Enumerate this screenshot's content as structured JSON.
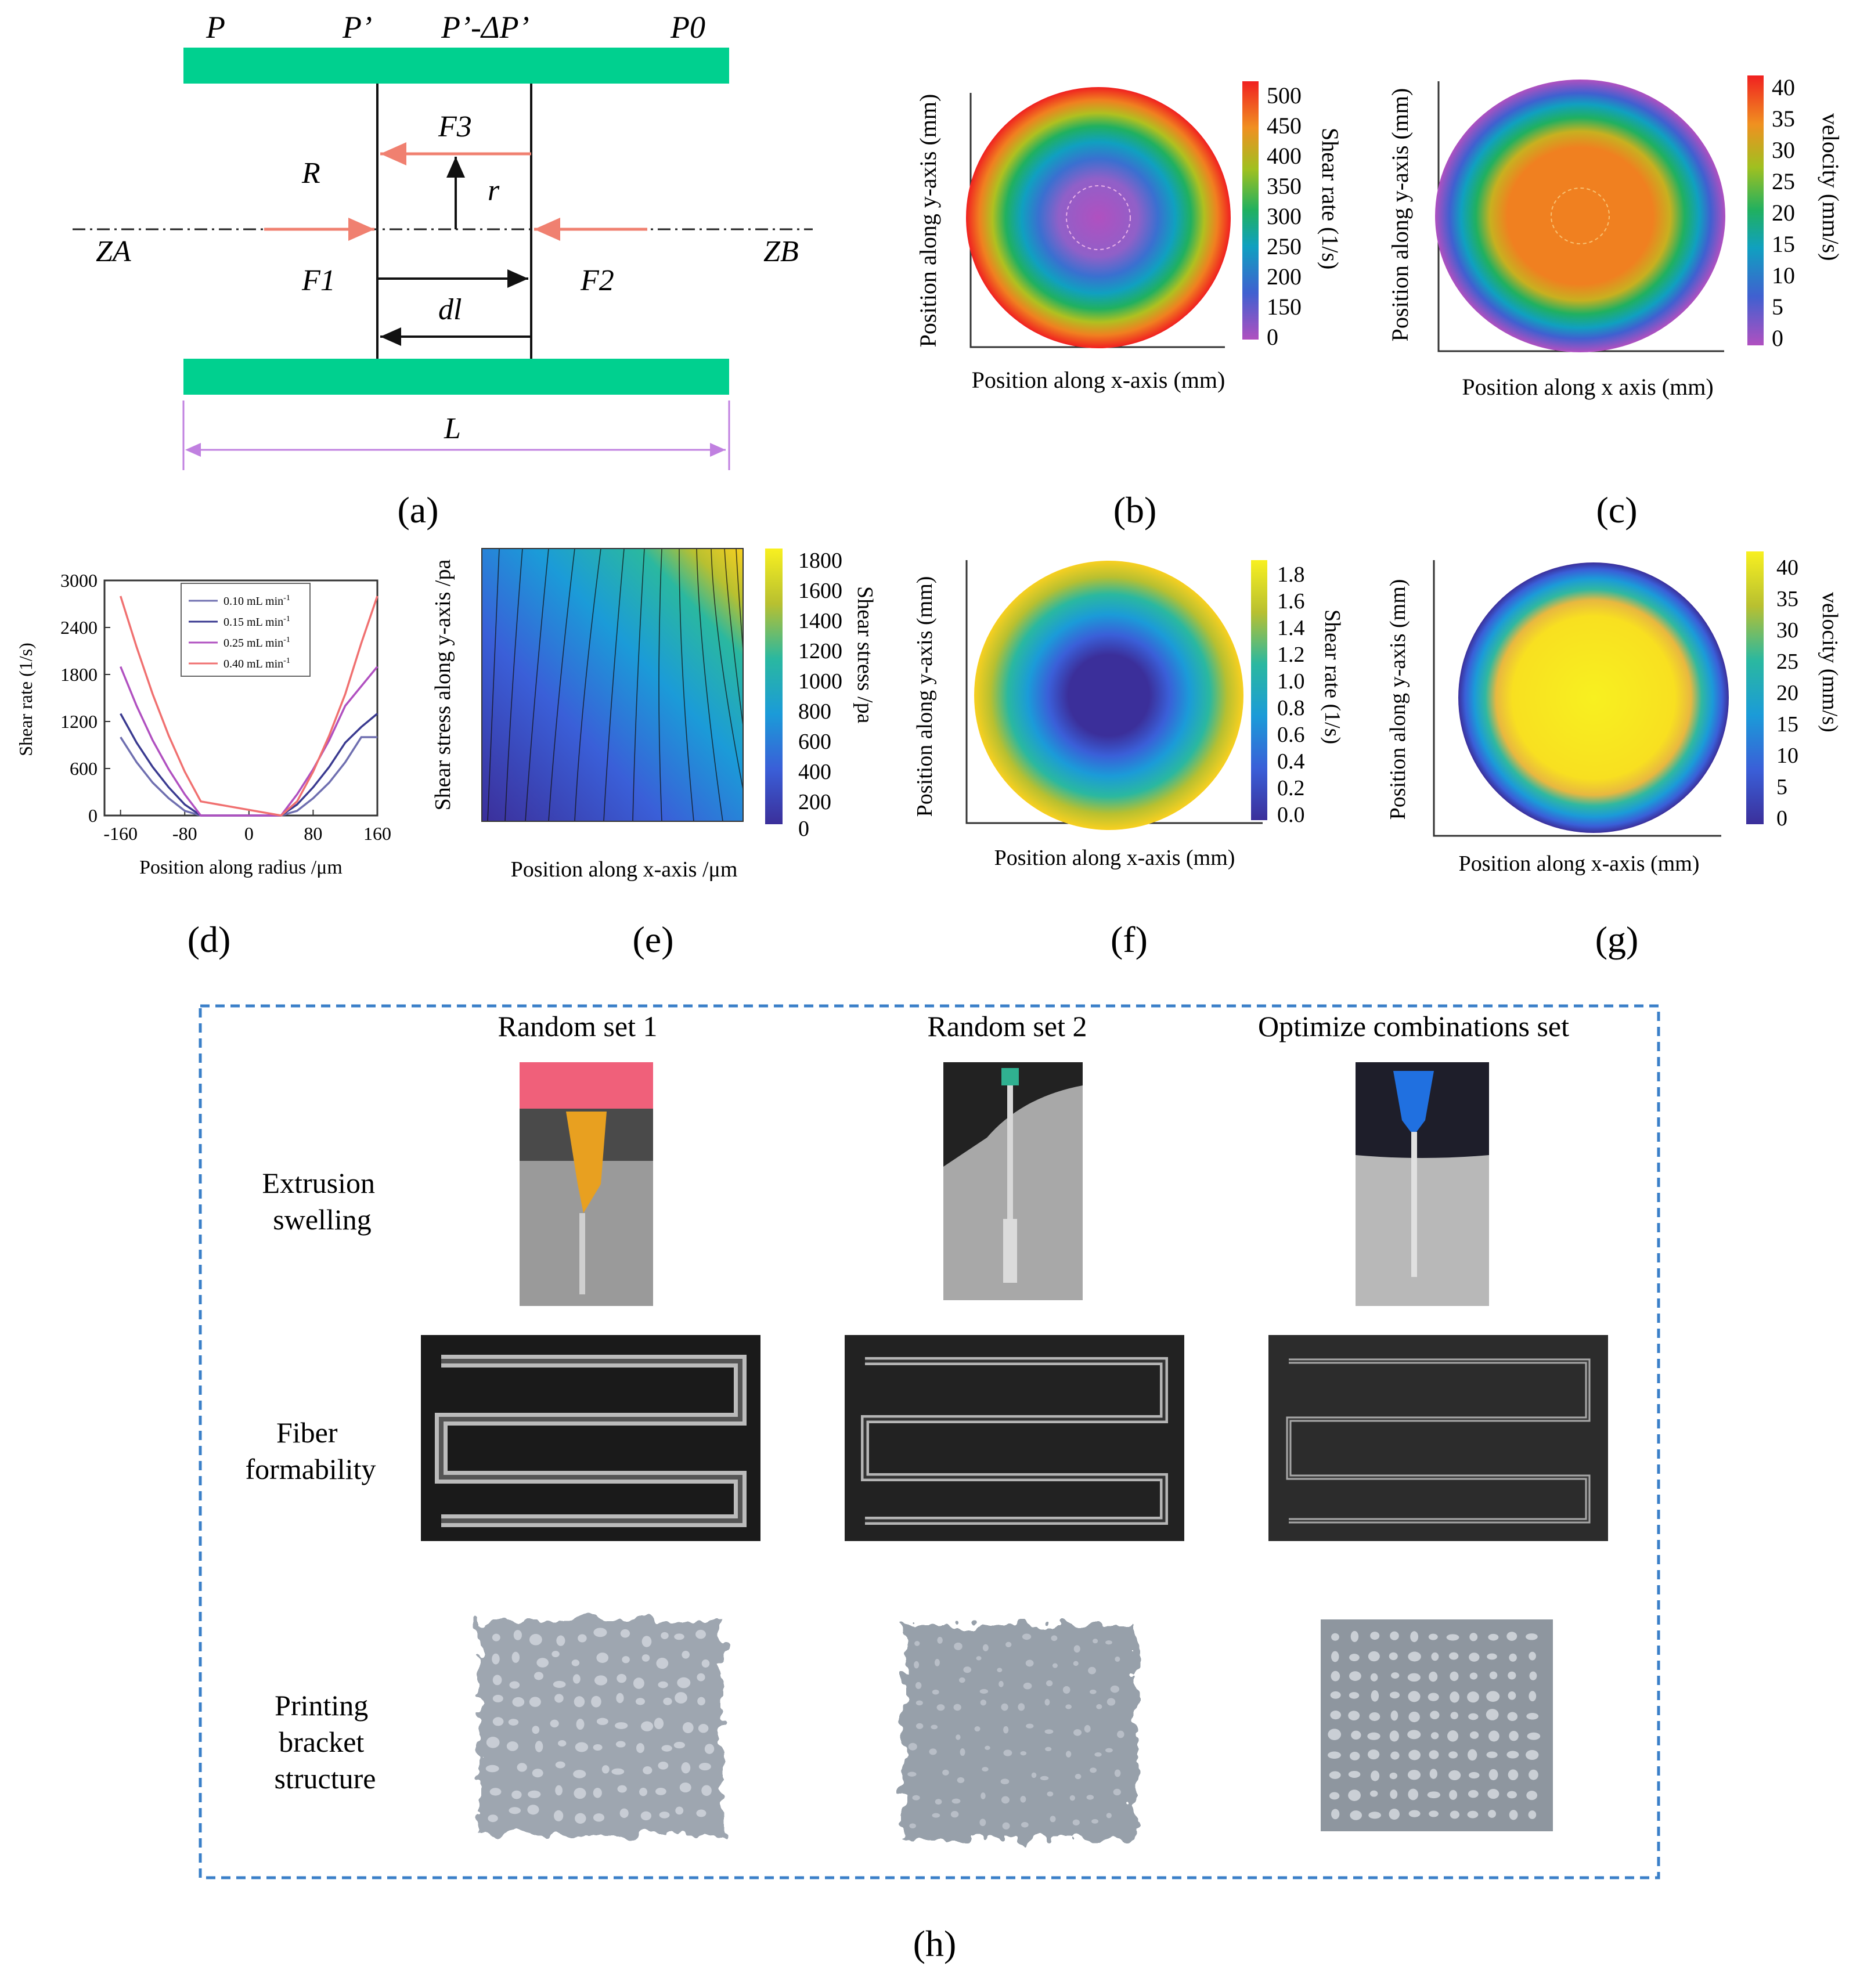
{
  "figure": {
    "captions": [
      "(a)",
      "(b)",
      "(c)",
      "(d)",
      "(e)",
      "(f)",
      "(g)",
      "(h)"
    ]
  },
  "panel_a": {
    "top_labels": [
      "P",
      "P’",
      "P’-ΔP’",
      "P0"
    ],
    "F3": "F3",
    "R": "R",
    "r": "r",
    "ZA": "ZA",
    "ZB": "ZB",
    "F1": "F1",
    "F2": "F2",
    "dl": "dl",
    "L": "L",
    "colors": {
      "plate": "#00d08f",
      "force": "#f08070",
      "length": "#c080e0"
    }
  },
  "panel_b": {
    "xlabel": "Position along x-axis (mm)",
    "ylabel": "Position along y-axis (mm)",
    "cbar_label": "Shear rate (1/s)",
    "cbar_ticks": [
      "500",
      "450",
      "400",
      "350",
      "300",
      "250",
      "200",
      "150",
      "0"
    ]
  },
  "panel_c": {
    "xlabel": "Position along x axis (mm)",
    "ylabel": "Position along y-axis (mm)",
    "cbar_label": "velocity (mm/s)",
    "cbar_ticks": [
      "40",
      "35",
      "30",
      "25",
      "20",
      "15",
      "10",
      "5",
      "0"
    ]
  },
  "panel_e": {
    "xlabel": "Position along x-axis /μm",
    "ylabel": "Shear stress along y-axis /pa",
    "cbar_label": "Shear stress /pa",
    "cbar_ticks": [
      "1800",
      "1600",
      "1400",
      "1200",
      "1000",
      "800",
      "600",
      "400",
      "200",
      "0"
    ]
  },
  "panel_f": {
    "xlabel": "Position along x-axis (mm)",
    "ylabel": "Position along y-axis (mm)",
    "cbar_label": "Shear rate (1/s)",
    "cbar_ticks": [
      "1.8",
      "1.6",
      "1.4",
      "1.2",
      "1.0",
      "0.8",
      "0.6",
      "0.4",
      "0.2",
      "0.0"
    ]
  },
  "panel_g": {
    "xlabel": "Position along x-axis (mm)",
    "ylabel": "Position along y-axis (mm)",
    "cbar_label": "velocity (mm/s)",
    "cbar_ticks": [
      "40",
      "35",
      "30",
      "25",
      "20",
      "15",
      "10",
      "5",
      "0"
    ]
  },
  "panel_h": {
    "columns": [
      "Random set 1",
      "Random set 2",
      "Optimize combinations set"
    ],
    "rows": [
      [
        "Extrusion",
        "swelling"
      ],
      [
        "Fiber",
        "formability"
      ],
      [
        "Printing",
        "bracket",
        "structure"
      ]
    ]
  },
  "chart_data": {
    "type": "line",
    "title": "",
    "xlabel": "Position along radius /μm",
    "ylabel": "Shear rate (1/s)",
    "xlim": [
      -180,
      160
    ],
    "ylim": [
      0,
      3000
    ],
    "xticks": [
      -160,
      -80,
      0,
      80,
      160
    ],
    "yticks": [
      0,
      600,
      1200,
      1800,
      2400,
      3000
    ],
    "legend_position": "top-center",
    "series": [
      {
        "name": "0.10 mL min",
        "color": "#6f6fb0",
        "x": [
          -160,
          -140,
          -120,
          -100,
          -80,
          -60,
          40,
          60,
          80,
          100,
          120,
          140,
          160
        ],
        "y": [
          1000,
          680,
          420,
          220,
          60,
          0,
          0,
          60,
          220,
          420,
          680,
          1000,
          1000
        ]
      },
      {
        "name": "0.15 mL min",
        "color": "#3a3a90",
        "x": [
          -160,
          -140,
          -120,
          -100,
          -80,
          -60,
          40,
          60,
          80,
          100,
          120,
          140,
          160
        ],
        "y": [
          1300,
          930,
          620,
          360,
          140,
          0,
          0,
          140,
          360,
          620,
          930,
          1130,
          1300
        ]
      },
      {
        "name": "0.25 mL min",
        "color": "#b050c0",
        "x": [
          -160,
          -140,
          -120,
          -100,
          -80,
          -60,
          40,
          60,
          80,
          100,
          120,
          140,
          160
        ],
        "y": [
          1900,
          1400,
          960,
          590,
          270,
          0,
          0,
          270,
          590,
          960,
          1400,
          1650,
          1900
        ]
      },
      {
        "name": "0.40 mL min",
        "color": "#f07070",
        "x": [
          -160,
          -140,
          -120,
          -100,
          -80,
          -60,
          40,
          60,
          80,
          100,
          120,
          140,
          160
        ],
        "y": [
          2800,
          2150,
          1550,
          1020,
          560,
          180,
          0,
          180,
          560,
          1020,
          1550,
          2200,
          2800
        ]
      }
    ]
  }
}
